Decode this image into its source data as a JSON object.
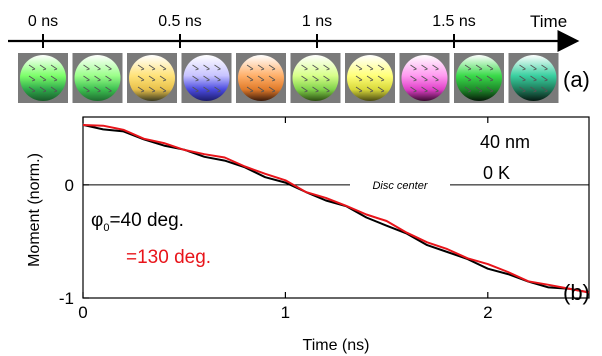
{
  "timeline": {
    "ticks": [
      {
        "t": 0.0,
        "label": "0 ns"
      },
      {
        "t": 0.5,
        "label": "0.5 ns"
      },
      {
        "t": 1.0,
        "label": "1 ns"
      },
      {
        "t": 1.5,
        "label": "1.5 ns"
      }
    ],
    "axis_label": "Time",
    "panel_label": "(a)",
    "discs": [
      {
        "base": "#2ea84a",
        "accent": "#7dff6a",
        "dark": "#1a5a2a"
      },
      {
        "base": "#3bbf4f",
        "accent": "#9bff8a",
        "dark": "#1f6b30"
      },
      {
        "base": "#e8c04a",
        "accent": "#ffe37a",
        "dark": "#3a3a20"
      },
      {
        "base": "#4a4adf",
        "accent": "#c7c3ff",
        "dark": "#1c1c6a"
      },
      {
        "base": "#e07a2a",
        "accent": "#ffb06a",
        "dark": "#3a1a0a"
      },
      {
        "base": "#7fd24a",
        "accent": "#d8ff8a",
        "dark": "#2d4d12"
      },
      {
        "base": "#d8d83a",
        "accent": "#ffff7a",
        "dark": "#4a4a12"
      },
      {
        "base": "#e040c8",
        "accent": "#ff9af0",
        "dark": "#3a0a30"
      },
      {
        "base": "#1e8a2a",
        "accent": "#3ada4a",
        "dark": "#061a08"
      },
      {
        "base": "#1e7a5a",
        "accent": "#3ad0a0",
        "dark": "#061a12"
      }
    ]
  },
  "chart_data": {
    "type": "line",
    "xlabel": "Time (ns)",
    "ylabel": "Moment (norm.)",
    "xlim": [
      0,
      2.5
    ],
    "ylim": [
      -1.0,
      0.6
    ],
    "xticks": [
      0,
      1,
      2
    ],
    "yticks": [
      {
        "value": 0,
        "label": "0"
      },
      {
        "value": -1,
        "label": "-1"
      }
    ],
    "reference_line": {
      "y": 0,
      "label": "Disc center"
    },
    "annotations": [
      "40 nm",
      "0 K"
    ],
    "panel_label": "(b)",
    "series": [
      {
        "name": "φ₀=40 deg.",
        "color": "#000000",
        "x": [
          0.0,
          0.1,
          0.2,
          0.3,
          0.4,
          0.5,
          0.6,
          0.7,
          0.8,
          0.9,
          1.0,
          1.1,
          1.2,
          1.3,
          1.4,
          1.5,
          1.6,
          1.7,
          1.8,
          1.9,
          2.0,
          2.1,
          2.2,
          2.3,
          2.4,
          2.5
        ],
        "y": [
          0.53,
          0.5,
          0.46,
          0.41,
          0.35,
          0.3,
          0.26,
          0.21,
          0.15,
          0.08,
          0.01,
          -0.06,
          -0.13,
          -0.2,
          -0.28,
          -0.36,
          -0.44,
          -0.52,
          -0.6,
          -0.66,
          -0.73,
          -0.8,
          -0.85,
          -0.9,
          -0.93,
          -0.94
        ]
      },
      {
        "name": "=130 deg.",
        "color": "#e8141a",
        "x": [
          0.0,
          0.1,
          0.2,
          0.3,
          0.4,
          0.5,
          0.6,
          0.7,
          0.8,
          0.9,
          1.0,
          1.1,
          1.2,
          1.3,
          1.4,
          1.5,
          1.6,
          1.7,
          1.8,
          1.9,
          2.0,
          2.1,
          2.2,
          2.3,
          2.4,
          2.5
        ],
        "y": [
          0.54,
          0.52,
          0.48,
          0.42,
          0.36,
          0.31,
          0.28,
          0.23,
          0.17,
          0.1,
          0.03,
          -0.05,
          -0.12,
          -0.19,
          -0.25,
          -0.33,
          -0.42,
          -0.5,
          -0.58,
          -0.64,
          -0.7,
          -0.78,
          -0.84,
          -0.89,
          -0.92,
          -0.94
        ]
      }
    ]
  }
}
